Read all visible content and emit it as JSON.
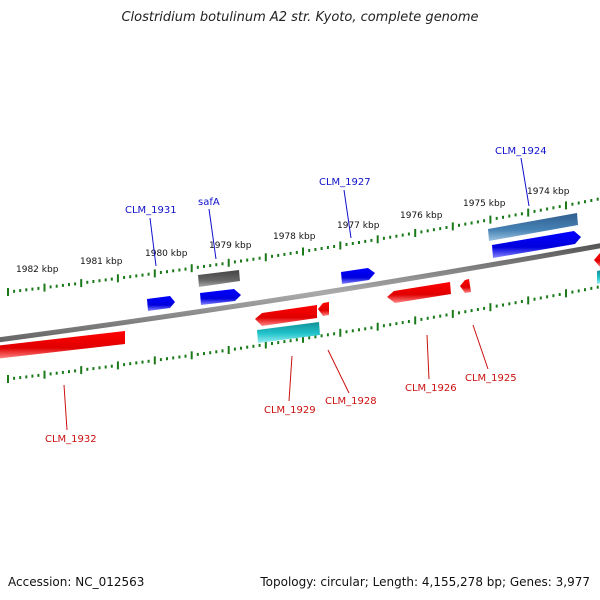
{
  "title": "Clostridium botulinum A2 str. Kyoto, complete genome",
  "footer": {
    "accession": "Accession: NC_012563",
    "summary": "Topology: circular; Length: 4,155,278 bp; Genes: 3,977"
  },
  "colors": {
    "backbone": "#8a8a8a",
    "tick": "#1a7a1a",
    "forward_gene": "#0000ee",
    "reverse_gene": "#ee0000",
    "rna_gene": "#22c4cc",
    "pseudo_gene": "#555555",
    "other_gene": "#4682b4",
    "label_forward": "#1010cc",
    "label_reverse": "#cc1010"
  },
  "scale_labels": [
    "1982 kbp",
    "1981 kbp",
    "1980 kbp",
    "1979 kbp",
    "1978 kbp",
    "1977 kbp",
    "1976 kbp",
    "1975 kbp",
    "1974 kbp"
  ],
  "gene_labels": [
    {
      "text": "CLM_1931",
      "strand": "forward"
    },
    {
      "text": "safA",
      "strand": "forward"
    },
    {
      "text": "CLM_1927",
      "strand": "forward"
    },
    {
      "text": "CLM_1924",
      "strand": "forward"
    },
    {
      "text": "CLM_1932",
      "strand": "reverse"
    },
    {
      "text": "CLM_1929",
      "strand": "reverse"
    },
    {
      "text": "CLM_1928",
      "strand": "reverse"
    },
    {
      "text": "CLM_1926",
      "strand": "reverse"
    },
    {
      "text": "CLM_1925",
      "strand": "reverse"
    }
  ]
}
